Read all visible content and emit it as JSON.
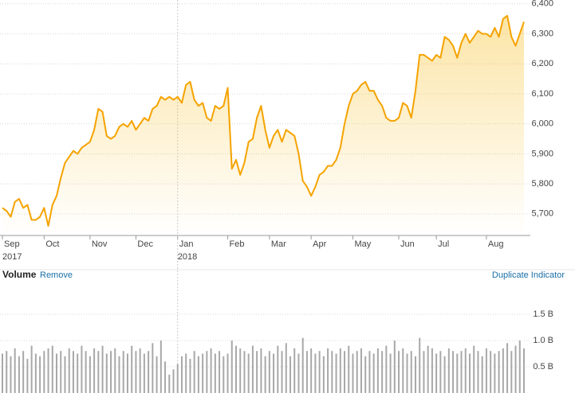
{
  "chart_data": [
    {
      "type": "line",
      "color": "#f5a300",
      "values": [
        5720,
        5710,
        5690,
        5740,
        5750,
        5720,
        5730,
        5680,
        5680,
        5690,
        5720,
        5660,
        5730,
        5760,
        5820,
        5870,
        5890,
        5910,
        5900,
        5920,
        5930,
        5940,
        5980,
        6050,
        6040,
        5960,
        5950,
        5960,
        5990,
        6000,
        5990,
        6010,
        5980,
        6000,
        6020,
        6010,
        6050,
        6060,
        6090,
        6080,
        6090,
        6080,
        6090,
        6070,
        6130,
        6140,
        6080,
        6060,
        6070,
        6020,
        6010,
        6060,
        6050,
        6060,
        6120,
        5850,
        5880,
        5830,
        5870,
        5940,
        5950,
        6020,
        6060,
        5980,
        5920,
        5960,
        5980,
        5940,
        5980,
        5970,
        5960,
        5900,
        5810,
        5790,
        5760,
        5790,
        5830,
        5840,
        5860,
        5860,
        5880,
        5920,
        6000,
        6060,
        6100,
        6110,
        6130,
        6140,
        6110,
        6110,
        6080,
        6060,
        6020,
        6010,
        6010,
        6020,
        6070,
        6060,
        6020,
        6110,
        6230,
        6230,
        6220,
        6210,
        6230,
        6220,
        6290,
        6280,
        6260,
        6220,
        6270,
        6300,
        6270,
        6290,
        6310,
        6300,
        6300,
        6290,
        6320,
        6290,
        6350,
        6360,
        6290,
        6260,
        6300,
        6340
      ],
      "xlim": [
        0,
        125
      ],
      "xticks": [
        {
          "value": 0,
          "label": "Sep"
        },
        {
          "value": 10,
          "label": "Oct"
        },
        {
          "value": 21,
          "label": "Nov"
        },
        {
          "value": 32,
          "label": "Dec"
        },
        {
          "value": 42,
          "label": "Jan"
        },
        {
          "value": 54,
          "label": "Feb"
        },
        {
          "value": 64,
          "label": "Mar"
        },
        {
          "value": 74,
          "label": "Apr"
        },
        {
          "value": 84,
          "label": "May"
        },
        {
          "value": 95,
          "label": "Jun"
        },
        {
          "value": 104,
          "label": "Jul"
        },
        {
          "value": 116,
          "label": "Aug"
        }
      ],
      "year_ticks": [
        {
          "value": 0,
          "label": "2017"
        },
        {
          "value": 42,
          "label": "2018"
        }
      ],
      "ylim": [
        5628,
        6410
      ],
      "yticks": [
        {
          "value": 5700,
          "label": "5,700"
        },
        {
          "value": 5800,
          "label": "5,800"
        },
        {
          "value": 5900,
          "label": "5,900"
        },
        {
          "value": 6000,
          "label": "6,000"
        },
        {
          "value": 6100,
          "label": "6,100"
        },
        {
          "value": 6200,
          "label": "6,200"
        },
        {
          "value": 6300,
          "label": "6,300"
        },
        {
          "value": 6400,
          "label": "6,400"
        }
      ],
      "grid": true
    },
    {
      "type": "bar",
      "title": "Volume",
      "color": "#a8a8a8",
      "actions": [
        "Remove",
        "Duplicate Indicator"
      ],
      "values": [
        0.75,
        0.8,
        0.7,
        0.85,
        0.7,
        0.8,
        0.65,
        0.9,
        0.75,
        0.7,
        0.8,
        0.85,
        0.9,
        0.75,
        0.8,
        0.7,
        0.85,
        0.8,
        0.75,
        0.9,
        0.8,
        0.7,
        0.85,
        0.8,
        0.9,
        0.75,
        0.8,
        0.85,
        0.7,
        0.8,
        0.75,
        0.9,
        0.8,
        0.85,
        0.75,
        0.8,
        0.95,
        0.7,
        1.0,
        0.6,
        0.35,
        0.45,
        0.55,
        0.7,
        0.75,
        0.65,
        0.8,
        0.7,
        0.75,
        0.8,
        0.85,
        0.75,
        0.8,
        0.7,
        0.75,
        1.0,
        0.9,
        0.85,
        0.8,
        0.75,
        0.9,
        0.8,
        0.85,
        0.7,
        0.8,
        0.75,
        0.9,
        0.8,
        0.95,
        0.7,
        0.85,
        0.75,
        1.05,
        0.8,
        0.85,
        0.75,
        0.8,
        0.7,
        0.85,
        0.8,
        0.75,
        0.85,
        0.8,
        0.9,
        0.75,
        0.8,
        0.85,
        0.7,
        0.8,
        0.75,
        0.85,
        0.8,
        0.9,
        0.75,
        1.0,
        0.8,
        0.85,
        0.75,
        0.8,
        0.7,
        1.05,
        0.8,
        0.9,
        0.85,
        0.75,
        0.8,
        0.7,
        0.85,
        0.8,
        0.75,
        0.8,
        0.85,
        0.75,
        0.9,
        0.8,
        0.7,
        0.85,
        0.8,
        0.75,
        0.8,
        0.85,
        0.95,
        0.8,
        0.9,
        1.0,
        0.85
      ],
      "ylim": [
        0,
        2
      ],
      "yticks": [
        {
          "value": 0.5,
          "label": "0.5 B"
        },
        {
          "value": 1,
          "label": "1.0 B"
        },
        {
          "value": 1.5,
          "label": "1.5 B"
        }
      ],
      "grid": true
    }
  ]
}
